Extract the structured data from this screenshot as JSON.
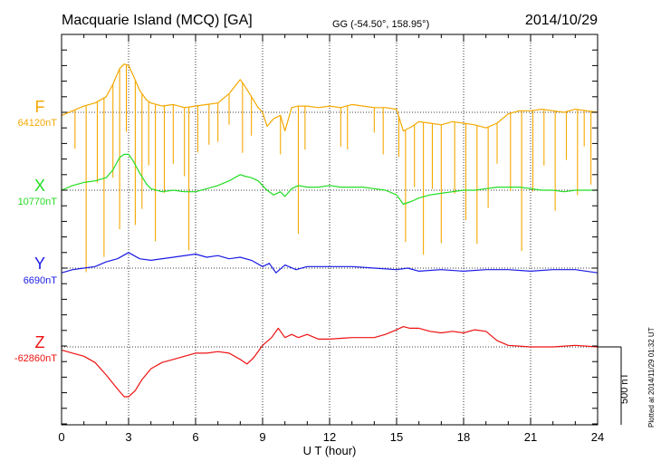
{
  "header": {
    "station": "Macquarie Island (MCQ)  [GA]",
    "coords": "GG (-54.50°, 158.95°)",
    "date": "2014/10/29"
  },
  "footer": {
    "plotted": "Plotted at 2014/11/29 01:32 UT",
    "scale_label": "500 nT"
  },
  "chart_data": {
    "type": "line",
    "title": "Macquarie Island (MCQ)  [GA]",
    "xlabel": "U T (hour)",
    "ylabel": "",
    "xlim": [
      0,
      24
    ],
    "x_ticks": [
      0,
      3,
      6,
      9,
      12,
      15,
      18,
      21,
      24
    ],
    "x_tick_labels": [
      "0",
      "3",
      "6",
      "9",
      "12",
      "15",
      "18",
      "21",
      "24"
    ],
    "grid": true,
    "scale_bar_nT": 500,
    "series": [
      {
        "name": "F",
        "baseline_label": "64120nT",
        "baseline": 64120,
        "color": "#f5a800",
        "x": [
          0,
          0.5,
          1,
          1.5,
          2,
          2.3,
          2.6,
          2.8,
          3,
          3.2,
          3.5,
          3.8,
          4,
          4.5,
          5,
          5.5,
          6,
          6.5,
          7,
          7.5,
          8,
          8.2,
          8.5,
          8.8,
          9,
          9.2,
          9.5,
          9.8,
          10,
          10.3,
          10.6,
          11,
          11.5,
          12,
          12.5,
          13,
          13.5,
          14,
          14.5,
          15,
          15.3,
          15.7,
          16,
          16.5,
          17,
          17.5,
          18,
          18.5,
          19,
          19.5,
          20,
          20.5,
          21,
          21.5,
          22,
          22.5,
          23,
          23.5,
          24
        ],
        "values": [
          64100,
          64130,
          64160,
          64180,
          64220,
          64300,
          64400,
          64430,
          64420,
          64360,
          64260,
          64200,
          64180,
          64160,
          64170,
          64150,
          64160,
          64170,
          64180,
          64240,
          64330,
          64290,
          64220,
          64150,
          64120,
          64030,
          64080,
          64100,
          64000,
          64150,
          64160,
          64160,
          64150,
          64160,
          64150,
          64170,
          64160,
          64150,
          64150,
          64140,
          64000,
          64030,
          64060,
          64050,
          64040,
          64060,
          64050,
          64040,
          64020,
          64050,
          64110,
          64130,
          64130,
          64140,
          64130,
          64120,
          64140,
          64130,
          64120
        ],
        "spikes": [
          [
            0.6,
            -250
          ],
          [
            1.1,
            -1070
          ],
          [
            1.6,
            -520
          ],
          [
            1.9,
            -1020
          ],
          [
            2.3,
            -600
          ],
          [
            2.6,
            -1030
          ],
          [
            2.9,
            -430
          ],
          [
            3.3,
            -930
          ],
          [
            3.6,
            -740
          ],
          [
            3.9,
            -410
          ],
          [
            4.2,
            -880
          ],
          [
            4.6,
            -560
          ],
          [
            5.0,
            -380
          ],
          [
            5.5,
            -440
          ],
          [
            5.7,
            -920
          ],
          [
            6.1,
            -300
          ],
          [
            6.6,
            -260
          ],
          [
            7.0,
            -250
          ],
          [
            7.5,
            -200
          ],
          [
            8.1,
            -450
          ],
          [
            8.5,
            -250
          ],
          [
            9.8,
            -250
          ],
          [
            10.6,
            -820
          ],
          [
            10.9,
            -280
          ],
          [
            12.5,
            -250
          ],
          [
            12.8,
            -280
          ],
          [
            14.0,
            -160
          ],
          [
            14.4,
            -300
          ],
          [
            15.1,
            -260
          ],
          [
            15.4,
            -720
          ],
          [
            15.8,
            -400
          ],
          [
            16.2,
            -850
          ],
          [
            16.6,
            -420
          ],
          [
            17.0,
            -760
          ],
          [
            17.6,
            -460
          ],
          [
            18.1,
            -620
          ],
          [
            18.6,
            -760
          ],
          [
            19.1,
            -520
          ],
          [
            19.5,
            -260
          ],
          [
            20.1,
            -500
          ],
          [
            20.6,
            -900
          ],
          [
            21.1,
            -520
          ],
          [
            21.6,
            -360
          ],
          [
            22.1,
            -640
          ],
          [
            22.6,
            -310
          ],
          [
            23.1,
            -550
          ],
          [
            23.4,
            -230
          ],
          [
            23.7,
            -470
          ]
        ]
      },
      {
        "name": "X",
        "baseline_label": "10770nT",
        "baseline": 10770,
        "color": "#22dd22",
        "x": [
          0,
          0.5,
          1,
          1.5,
          2,
          2.3,
          2.6,
          2.8,
          3,
          3.2,
          3.5,
          3.8,
          4,
          4.5,
          5,
          5.5,
          6,
          6.5,
          7,
          7.5,
          8,
          8.2,
          8.5,
          8.8,
          9,
          9.2,
          9.5,
          9.8,
          10,
          10.3,
          10.6,
          11,
          11.5,
          12,
          12.5,
          13,
          13.5,
          14,
          14.5,
          15,
          15.3,
          15.7,
          16,
          16.5,
          17,
          17.5,
          18,
          18.5,
          19,
          19.5,
          20,
          20.5,
          21,
          21.5,
          22,
          22.5,
          23,
          23.5,
          24
        ],
        "values": [
          10770,
          10800,
          10820,
          10830,
          10850,
          10900,
          10980,
          11000,
          11000,
          10960,
          10880,
          10810,
          10780,
          10760,
          10770,
          10760,
          10760,
          10780,
          10800,
          10830,
          10870,
          10860,
          10850,
          10830,
          10800,
          10770,
          10740,
          10760,
          10730,
          10780,
          10800,
          10790,
          10790,
          10800,
          10790,
          10790,
          10790,
          10780,
          10770,
          10740,
          10680,
          10700,
          10720,
          10740,
          10750,
          10760,
          10770,
          10770,
          10780,
          10790,
          10790,
          10790,
          10780,
          10770,
          10770,
          10760,
          10770,
          10770,
          10770
        ]
      },
      {
        "name": "Y",
        "baseline_label": "6690nT",
        "baseline": 6690,
        "color": "#1a1ae6",
        "x": [
          0,
          0.5,
          1,
          1.5,
          2,
          2.5,
          3,
          3.5,
          4,
          5,
          6,
          6.5,
          7,
          7.5,
          8,
          8.5,
          9,
          9.3,
          9.6,
          10,
          10.5,
          11,
          12,
          13,
          14,
          15,
          15.5,
          16,
          17,
          18,
          19,
          20,
          21,
          22,
          23,
          24
        ],
        "values": [
          6660,
          6680,
          6690,
          6700,
          6730,
          6750,
          6790,
          6750,
          6740,
          6760,
          6780,
          6760,
          6770,
          6750,
          6760,
          6740,
          6700,
          6720,
          6660,
          6710,
          6680,
          6700,
          6700,
          6700,
          6690,
          6680,
          6690,
          6670,
          6680,
          6670,
          6680,
          6680,
          6670,
          6680,
          6680,
          6660
        ]
      },
      {
        "name": "Z",
        "baseline_label": "-62860nT",
        "baseline": -62860,
        "color": "#ee1111",
        "x": [
          0,
          0.5,
          1,
          1.5,
          2,
          2.5,
          2.8,
          3,
          3.3,
          3.6,
          4,
          4.5,
          5,
          5.5,
          6,
          6.5,
          7,
          7.5,
          8,
          8.3,
          8.6,
          9,
          9.4,
          9.7,
          10,
          10.3,
          10.6,
          11,
          11.5,
          12,
          13,
          14,
          14.5,
          15,
          15.3,
          15.6,
          16,
          16.5,
          17,
          17.5,
          18,
          18.5,
          19,
          19.5,
          20,
          21,
          22,
          23,
          24
        ],
        "values": [
          -62880,
          -62900,
          -62920,
          -62960,
          -63040,
          -63130,
          -63180,
          -63180,
          -63140,
          -63070,
          -63000,
          -62960,
          -62940,
          -62920,
          -62900,
          -62900,
          -62890,
          -62900,
          -62940,
          -62970,
          -62930,
          -62850,
          -62800,
          -62740,
          -62800,
          -62780,
          -62800,
          -62780,
          -62810,
          -62810,
          -62800,
          -62800,
          -62780,
          -62750,
          -62730,
          -62740,
          -62740,
          -62760,
          -62770,
          -62760,
          -62770,
          -62750,
          -62760,
          -62820,
          -62850,
          -62860,
          -62860,
          -62850,
          -62860
        ]
      }
    ]
  }
}
